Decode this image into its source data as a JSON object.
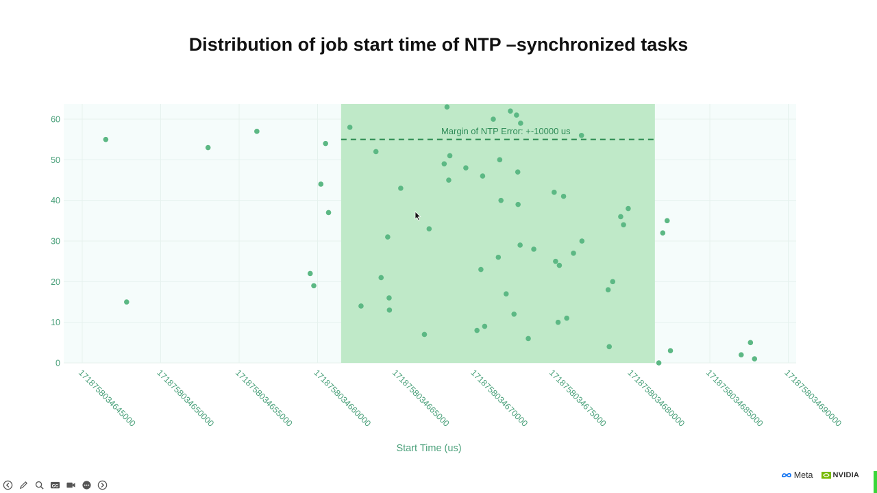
{
  "slide": {
    "title": "Distribution of job start time of NTP –synchronized tasks"
  },
  "chart_data": {
    "type": "scatter",
    "xlabel": "Start Time (us)",
    "ylabel": "",
    "xlim": [
      1718758034641000,
      1718758034692000
    ],
    "ylim": [
      0,
      63
    ],
    "x_ticks": [
      {
        "value": 1718758034645000,
        "label": "1718758034645000"
      },
      {
        "value": 1718758034650000,
        "label": "1718758034650000"
      },
      {
        "value": 1718758034655000,
        "label": "1718758034655000"
      },
      {
        "value": 1718758034660000,
        "label": "1718758034660000"
      },
      {
        "value": 1718758034665000,
        "label": "1718758034665000"
      },
      {
        "value": 1718758034670000,
        "label": "1718758034670000"
      },
      {
        "value": 1718758034675000,
        "label": "1718758034675000"
      },
      {
        "value": 1718758034680000,
        "label": "1718758034680000"
      },
      {
        "value": 1718758034685000,
        "label": "1718758034685000"
      },
      {
        "value": 1718758034690000,
        "label": "1718758034690000"
      }
    ],
    "y_ticks": [
      0,
      10,
      20,
      30,
      40,
      50,
      60
    ],
    "grid": true,
    "highlight_region": {
      "x_start": 1718758034661500,
      "x_end": 1718758034681500,
      "color": "#bfe9c8"
    },
    "reference_line": {
      "y": 55,
      "x_start": 1718758034661500,
      "x_end": 1718758034681500,
      "style": "dashed",
      "color": "#2a8a4f"
    },
    "annotation": {
      "text": "Margin of NTP Error: +-10000 us",
      "x": 1718758034672000,
      "y": 57
    },
    "point_color": "#5cb884",
    "plot_background": "#f5fcfb",
    "points": [
      {
        "x": 1718758034646500,
        "y": 55
      },
      {
        "x": 1718758034647830,
        "y": 15
      },
      {
        "x": 1718758034653020,
        "y": 53
      },
      {
        "x": 1718758034656130,
        "y": 57
      },
      {
        "x": 1718758034659530,
        "y": 22
      },
      {
        "x": 1718758034659760,
        "y": 19
      },
      {
        "x": 1718758034660210,
        "y": 44
      },
      {
        "x": 1718758034660510,
        "y": 54
      },
      {
        "x": 1718758034660700,
        "y": 37
      },
      {
        "x": 1718758034662060,
        "y": 58
      },
      {
        "x": 1718758034662770,
        "y": 14
      },
      {
        "x": 1718758034663720,
        "y": 52
      },
      {
        "x": 1718758034664050,
        "y": 21
      },
      {
        "x": 1718758034664470,
        "y": 31
      },
      {
        "x": 1718758034664560,
        "y": 16
      },
      {
        "x": 1718758034664580,
        "y": 13
      },
      {
        "x": 1718758034665300,
        "y": 43
      },
      {
        "x": 1718758034666810,
        "y": 7
      },
      {
        "x": 1718758034667110,
        "y": 33
      },
      {
        "x": 1718758034668070,
        "y": 49
      },
      {
        "x": 1718758034668250,
        "y": 63
      },
      {
        "x": 1718758034668360,
        "y": 45
      },
      {
        "x": 1718758034668430,
        "y": 51
      },
      {
        "x": 1718758034669450,
        "y": 48
      },
      {
        "x": 1718758034670160,
        "y": 8
      },
      {
        "x": 1718758034670410,
        "y": 23
      },
      {
        "x": 1718758034670520,
        "y": 46
      },
      {
        "x": 1718758034670650,
        "y": 9
      },
      {
        "x": 1718758034671200,
        "y": 60
      },
      {
        "x": 1718758034671520,
        "y": 26
      },
      {
        "x": 1718758034671610,
        "y": 50
      },
      {
        "x": 1718758034671690,
        "y": 40
      },
      {
        "x": 1718758034672020,
        "y": 17
      },
      {
        "x": 1718758034672290,
        "y": 62
      },
      {
        "x": 1718758034672520,
        "y": 12
      },
      {
        "x": 1718758034672680,
        "y": 61
      },
      {
        "x": 1718758034672760,
        "y": 47
      },
      {
        "x": 1718758034672780,
        "y": 39
      },
      {
        "x": 1718758034672910,
        "y": 29
      },
      {
        "x": 1718758034672940,
        "y": 59
      },
      {
        "x": 1718758034673430,
        "y": 6
      },
      {
        "x": 1718758034673780,
        "y": 28
      },
      {
        "x": 1718758034675080,
        "y": 42
      },
      {
        "x": 1718758034675170,
        "y": 25
      },
      {
        "x": 1718758034675330,
        "y": 10
      },
      {
        "x": 1718758034675410,
        "y": 24
      },
      {
        "x": 1718758034675680,
        "y": 41
      },
      {
        "x": 1718758034675880,
        "y": 11
      },
      {
        "x": 1718758034676310,
        "y": 27
      },
      {
        "x": 1718758034676820,
        "y": 56
      },
      {
        "x": 1718758034676850,
        "y": 30
      },
      {
        "x": 1718758034678520,
        "y": 18
      },
      {
        "x": 1718758034678590,
        "y": 4
      },
      {
        "x": 1718758034678810,
        "y": 20
      },
      {
        "x": 1718758034679320,
        "y": 36
      },
      {
        "x": 1718758034679500,
        "y": 34
      },
      {
        "x": 1718758034679800,
        "y": 38
      },
      {
        "x": 1718758034681750,
        "y": 0
      },
      {
        "x": 1718758034682000,
        "y": 32
      },
      {
        "x": 1718758034682280,
        "y": 35
      },
      {
        "x": 1718758034682490,
        "y": 3
      },
      {
        "x": 1718758034687000,
        "y": 2
      },
      {
        "x": 1718758034687590,
        "y": 5
      },
      {
        "x": 1718758034687850,
        "y": 1
      }
    ]
  },
  "controls": {
    "prev_icon": "arrow-left-circle-icon",
    "pen_icon": "pen-icon",
    "zoom_icon": "magnifier-icon",
    "cc_label": "CC",
    "camera_icon": "video-camera-icon",
    "more_icon": "more-dots-icon",
    "next_icon": "arrow-right-circle-icon"
  },
  "logos": {
    "meta": "Meta",
    "nvidia": "NVIDIA"
  }
}
